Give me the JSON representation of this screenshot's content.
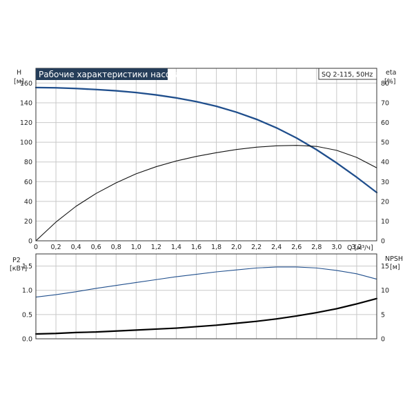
{
  "chart_data": [
    {
      "type": "line",
      "title": "Рабочие характеристики насоса",
      "model": "SQ 2-115, 50Hz",
      "x_label": "Q [м³/ч]",
      "xlim": [
        0,
        3.4
      ],
      "x_ticks": [
        "0",
        "0,2",
        "0,4",
        "0,6",
        "0,8",
        "1,0",
        "1,2",
        "1,4",
        "1,6",
        "1,8",
        "2,0",
        "2,2",
        "2,4",
        "2,6",
        "2,8",
        "3,0",
        "3,2"
      ],
      "left_axis": {
        "label": "H",
        "unit": "[м]",
        "ylim": [
          0,
          175
        ],
        "ticks": [
          "0",
          "20",
          "40",
          "60",
          "80",
          "100",
          "120",
          "140",
          "160"
        ]
      },
      "right_axis": {
        "label": "eta",
        "unit": "[%]",
        "ylim": [
          0,
          87.5
        ],
        "ticks": [
          "0",
          "10",
          "20",
          "30",
          "40",
          "50",
          "60",
          "70",
          "80"
        ]
      },
      "grid": true,
      "series": [
        {
          "axis": "left",
          "color": "#1f4e8c",
          "x": [
            0,
            0.2,
            0.4,
            0.6,
            0.8,
            1.0,
            1.2,
            1.4,
            1.6,
            1.8,
            2.0,
            2.2,
            2.4,
            2.6,
            2.8,
            3.0,
            3.2,
            3.4
          ],
          "y": [
            155.5,
            155.2,
            154.5,
            153.5,
            152.2,
            150.4,
            148,
            145,
            141.2,
            136.5,
            130.5,
            123.3,
            114.6,
            104.3,
            92.4,
            79,
            64.5,
            49
          ]
        },
        {
          "axis": "right",
          "color": "#111111",
          "x": [
            0,
            0.2,
            0.4,
            0.6,
            0.8,
            1.0,
            1.2,
            1.4,
            1.6,
            1.8,
            2.0,
            2.2,
            2.4,
            2.6,
            2.8,
            3.0,
            3.2,
            3.4
          ],
          "y": [
            0,
            9.5,
            17.5,
            24,
            29.4,
            34,
            37.6,
            40.5,
            42.8,
            44.7,
            46.3,
            47.5,
            48.2,
            48.4,
            47.9,
            45.9,
            42.3,
            37
          ]
        }
      ]
    },
    {
      "type": "line",
      "x_label": "",
      "xlim": [
        0,
        3.4
      ],
      "left_axis": {
        "label": "P2",
        "unit": "[кВт]",
        "ylim": [
          0,
          1.75
        ],
        "ticks": [
          "0.0",
          "0.5",
          "1.0",
          "1.5"
        ]
      },
      "right_axis": {
        "label": "NPSH",
        "unit": "[м]",
        "ylim": [
          0,
          17.5
        ],
        "ticks": [
          "0",
          "5",
          "10",
          "15"
        ]
      },
      "grid": true,
      "series": [
        {
          "axis": "left",
          "color": "#1f4e8c",
          "x": [
            0,
            0.2,
            0.4,
            0.6,
            0.8,
            1.0,
            1.2,
            1.4,
            1.6,
            1.8,
            2.0,
            2.2,
            2.4,
            2.6,
            2.8,
            3.0,
            3.2,
            3.4
          ],
          "y": [
            0.86,
            0.91,
            0.97,
            1.04,
            1.1,
            1.16,
            1.22,
            1.28,
            1.33,
            1.38,
            1.42,
            1.46,
            1.48,
            1.48,
            1.46,
            1.41,
            1.34,
            1.23
          ]
        },
        {
          "axis": "left",
          "color": "#000000",
          "x": [
            0,
            0.2,
            0.4,
            0.6,
            0.8,
            1.0,
            1.2,
            1.4,
            1.6,
            1.8,
            2.0,
            2.2,
            2.4,
            2.6,
            2.8,
            3.0,
            3.2,
            3.4
          ],
          "y": [
            0.1,
            0.11,
            0.13,
            0.14,
            0.16,
            0.18,
            0.2,
            0.22,
            0.25,
            0.28,
            0.32,
            0.36,
            0.41,
            0.47,
            0.54,
            0.62,
            0.72,
            0.83
          ]
        }
      ]
    }
  ]
}
